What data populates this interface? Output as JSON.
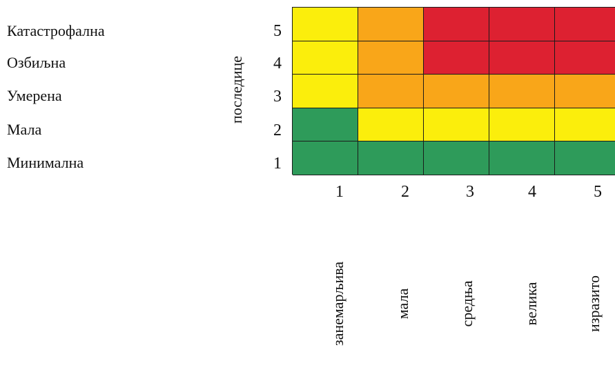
{
  "severity_labels": [
    "Катастрофална",
    "Озбиљна",
    "Умерена",
    "Мала",
    "Минимална"
  ],
  "axis_title": "последице",
  "row_numbers": [
    "5",
    "4",
    "3",
    "2",
    "1"
  ],
  "col_numbers": [
    "1",
    "2",
    "3",
    "4",
    "5"
  ],
  "probability_labels": [
    "занемарљива",
    "мала",
    "средња",
    "велика",
    "изразито"
  ],
  "colors": {
    "green": "#2e9b5a",
    "yellow": "#fbee0c",
    "orange": "#f9a619",
    "red": "#dd2131"
  },
  "matrix": [
    [
      "yellow",
      "orange",
      "red",
      "red",
      "red"
    ],
    [
      "yellow",
      "orange",
      "red",
      "red",
      "red"
    ],
    [
      "yellow",
      "orange",
      "orange",
      "orange",
      "orange"
    ],
    [
      "green",
      "yellow",
      "yellow",
      "yellow",
      "yellow"
    ],
    [
      "green",
      "green",
      "green",
      "green",
      "green"
    ]
  ]
}
